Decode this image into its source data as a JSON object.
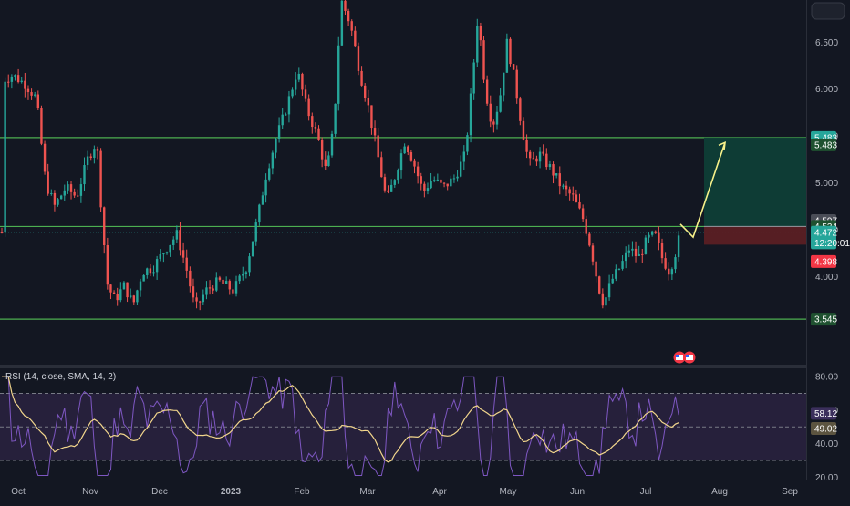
{
  "chart_data": {
    "type": "candlestick",
    "symbol_axis": {
      "y_ticks": [
        "6.500",
        "6.000",
        "5.500",
        "5.000",
        "4.500",
        "4.000"
      ],
      "y_tick_values": [
        6.5,
        6.0,
        5.5,
        5.0,
        4.5,
        4.0
      ],
      "ylim": [
        3.06,
        6.95
      ],
      "x_ticks": [
        "Oct",
        "Nov",
        "Dec",
        "2023",
        "Feb",
        "Mar",
        "Apr",
        "May",
        "Jun",
        "Jul",
        "Aug",
        "Sep"
      ]
    },
    "horizontal_levels": [
      {
        "value": 5.483,
        "label": "5.483"
      },
      {
        "value": 4.534,
        "label": "4.534"
      },
      {
        "value": 3.545,
        "label": "3.545"
      }
    ],
    "price_badges": [
      {
        "label": "5.483",
        "value": 5.483,
        "bg": "#26a69a",
        "fg": "#ffffff"
      },
      {
        "label": "5.483",
        "value": 5.405,
        "bg": "#1f5130",
        "fg": "#ffffff"
      },
      {
        "label": "4.597",
        "value": 4.597,
        "bg": "#4a4d57",
        "fg": "#ffffff"
      },
      {
        "label": "4.534",
        "value": 4.534,
        "bg": "#1f5130",
        "fg": "#ffffff"
      },
      {
        "label": "4.472",
        "value": 4.472,
        "bg": "#26a69a",
        "fg": "#ffffff"
      },
      {
        "label": "12:20:01",
        "value": 4.36,
        "bg": "#26a69a",
        "fg": "#ffffff"
      },
      {
        "label": "4.398",
        "value": 4.16,
        "bg": "#f23645",
        "fg": "#ffffff"
      },
      {
        "label": "3.545",
        "value": 3.545,
        "bg": "#1f5130",
        "fg": "#ffffff"
      }
    ],
    "position_tool": {
      "entry": 4.534,
      "target": 5.483,
      "stop": 4.34,
      "profit_color": "#0e3e37",
      "loss_color": "#5a1f24"
    },
    "projection_path": [
      {
        "x": "Jul 18",
        "y": 4.56
      },
      {
        "x": "Jul 21",
        "y": 4.42
      },
      {
        "x": "Aug 3",
        "y": 5.43
      }
    ],
    "candles_summary": {
      "count": 205,
      "up_color": "#26a69a",
      "down_color": "#ef5350"
    },
    "rsi": {
      "legend": "RSI (14, close, SMA, 14, 2)",
      "y_ticks": [
        "80.00",
        "60.00",
        "40.00",
        "20.00"
      ],
      "y_tick_values": [
        80,
        60,
        40,
        20
      ],
      "ylim": [
        18,
        85
      ],
      "bands": [
        70,
        50,
        30
      ],
      "rsi_value_label": "58.12",
      "sma_value_label": "49.02",
      "rsi_color": "#7e57c2",
      "sma_color": "#f2d68c",
      "band_fill": "#2a2240"
    }
  }
}
